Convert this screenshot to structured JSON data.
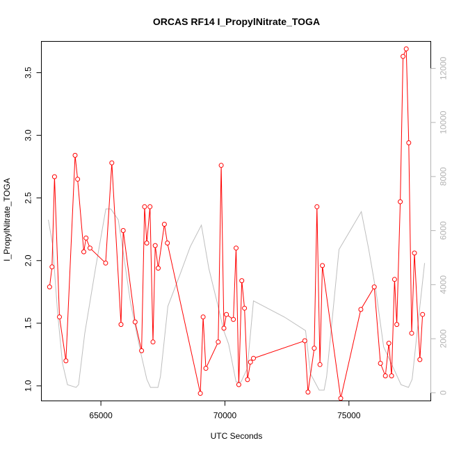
{
  "chart_data": {
    "type": "line",
    "title": "ORCAS RF14 I_PropylNitrate_TOGA",
    "xlabel": "UTC Seconds",
    "ylabel": "I_PropylNitrate_TOGA",
    "xlim": [
      62600,
      78300
    ],
    "ylim": [
      0.88,
      3.75
    ],
    "y2lim": [
      -300,
      13000
    ],
    "grid": false,
    "x_ticks": [
      65000,
      70000,
      75000
    ],
    "x_tick_labels": [
      "65000",
      "70000",
      "75000"
    ],
    "y_ticks": [
      1.0,
      1.5,
      2.0,
      2.5,
      3.0,
      3.5
    ],
    "y_tick_labels": [
      "1.0",
      "1.5",
      "2.0",
      "2.5",
      "3.0",
      "3.5"
    ],
    "y2_ticks": [
      0,
      2000,
      4000,
      6000,
      8000,
      10000,
      12000
    ],
    "y2_tick_labels": [
      "0",
      "2000",
      "4000",
      "6000",
      "8000",
      "10000",
      "12000"
    ],
    "colors": {
      "primary": "#ff0000",
      "secondary": "#bebebe",
      "axis": "#000000",
      "right_axis": "#b3b3b3"
    },
    "series": [
      {
        "role": "primary",
        "axis": "left",
        "style": "line+open-circles",
        "color": "#ff0000",
        "points": [
          [
            62930,
            1.79
          ],
          [
            63030,
            1.95
          ],
          [
            63130,
            2.67
          ],
          [
            63330,
            1.55
          ],
          [
            63590,
            1.2
          ],
          [
            63960,
            2.84
          ],
          [
            64060,
            2.65
          ],
          [
            64310,
            2.07
          ],
          [
            64400,
            2.18
          ],
          [
            64560,
            2.1
          ],
          [
            65190,
            1.98
          ],
          [
            65440,
            2.78
          ],
          [
            65810,
            1.49
          ],
          [
            65900,
            2.24
          ],
          [
            66380,
            1.51
          ],
          [
            66640,
            1.28
          ],
          [
            66760,
            2.43
          ],
          [
            66850,
            2.14
          ],
          [
            66980,
            2.43
          ],
          [
            67100,
            1.35
          ],
          [
            67190,
            2.12
          ],
          [
            67310,
            1.94
          ],
          [
            67560,
            2.29
          ],
          [
            67680,
            2.14
          ],
          [
            69010,
            0.94
          ],
          [
            69120,
            1.55
          ],
          [
            69230,
            1.14
          ],
          [
            69730,
            1.35
          ],
          [
            69850,
            2.76
          ],
          [
            69960,
            1.46
          ],
          [
            70060,
            1.57
          ],
          [
            70340,
            1.53
          ],
          [
            70450,
            2.1
          ],
          [
            70560,
            1.01
          ],
          [
            70680,
            1.84
          ],
          [
            70790,
            1.62
          ],
          [
            70910,
            1.05
          ],
          [
            71030,
            1.19
          ],
          [
            71150,
            1.22
          ],
          [
            73220,
            1.36
          ],
          [
            73350,
            0.95
          ],
          [
            73600,
            1.3
          ],
          [
            73710,
            2.43
          ],
          [
            73830,
            1.17
          ],
          [
            73930,
            1.96
          ],
          [
            74670,
            0.9
          ],
          [
            75480,
            1.61
          ],
          [
            76020,
            1.79
          ],
          [
            76270,
            1.18
          ],
          [
            76470,
            1.08
          ],
          [
            76610,
            1.34
          ],
          [
            76720,
            1.08
          ],
          [
            76840,
            1.85
          ],
          [
            76930,
            1.49
          ],
          [
            77070,
            2.47
          ],
          [
            77180,
            3.63
          ],
          [
            77310,
            3.69
          ],
          [
            77410,
            2.94
          ],
          [
            77530,
            1.42
          ],
          [
            77640,
            2.06
          ],
          [
            77860,
            1.21
          ],
          [
            77970,
            1.57
          ]
        ]
      },
      {
        "role": "secondary",
        "axis": "right",
        "style": "line",
        "color": "#bebebe",
        "points": [
          [
            62880,
            6400
          ],
          [
            63050,
            5500
          ],
          [
            63250,
            3000
          ],
          [
            63450,
            1100
          ],
          [
            63650,
            300
          ],
          [
            64000,
            200
          ],
          [
            64100,
            300
          ],
          [
            64350,
            2200
          ],
          [
            64800,
            4700
          ],
          [
            65200,
            6800
          ],
          [
            65400,
            6800
          ],
          [
            65700,
            6400
          ],
          [
            65900,
            5200
          ],
          [
            66200,
            3300
          ],
          [
            66600,
            1500
          ],
          [
            66850,
            500
          ],
          [
            67000,
            200
          ],
          [
            67300,
            200
          ],
          [
            67400,
            600
          ],
          [
            67700,
            3200
          ],
          [
            68200,
            4400
          ],
          [
            68600,
            5400
          ],
          [
            69050,
            6200
          ],
          [
            69350,
            4600
          ],
          [
            69700,
            3300
          ],
          [
            69950,
            2300
          ],
          [
            70150,
            1800
          ],
          [
            70450,
            400
          ],
          [
            70650,
            400
          ],
          [
            70900,
            900
          ],
          [
            71150,
            3400
          ],
          [
            72400,
            2800
          ],
          [
            73250,
            2300
          ],
          [
            73450,
            700
          ],
          [
            73800,
            100
          ],
          [
            74000,
            100
          ],
          [
            74100,
            600
          ],
          [
            74600,
            5300
          ],
          [
            75500,
            6700
          ],
          [
            75800,
            5300
          ],
          [
            76100,
            3700
          ],
          [
            76400,
            1700
          ],
          [
            76850,
            800
          ],
          [
            77100,
            300
          ],
          [
            77400,
            200
          ],
          [
            77550,
            500
          ],
          [
            77800,
            2700
          ],
          [
            78050,
            4800
          ]
        ]
      }
    ]
  }
}
